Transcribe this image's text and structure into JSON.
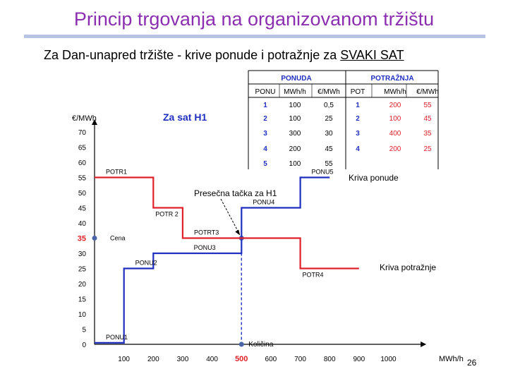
{
  "slide": {
    "title": "Princip trgovanja na organizovanom tržištu",
    "subtitle_prefix": "Za Dan-unapred tržište - krive ponude i potražnje za ",
    "subtitle_underlined": "SVAKI SAT",
    "page_number": "26"
  },
  "colors": {
    "title": "#8b2fb0",
    "supply": "#1f2fc0",
    "demand": "#e0202a",
    "highlight": "#e0202a",
    "table_header": "#1f2fc0",
    "table_values": "#1f2fc0",
    "demand_values": "#e0202a",
    "chart_title": "#1f2fc0"
  },
  "tables": {
    "supply": {
      "group_label": "PONUDA",
      "columns": [
        "PONU",
        "MWh/h",
        "€/MWh"
      ],
      "rows": [
        [
          "1",
          "100",
          "0,5"
        ],
        [
          "2",
          "100",
          "25"
        ],
        [
          "3",
          "300",
          "30"
        ],
        [
          "4",
          "200",
          "45"
        ],
        [
          "5",
          "100",
          "55"
        ]
      ]
    },
    "demand": {
      "group_label": "POTRAŽNJA",
      "columns": [
        "POT",
        "MWh/h",
        "€/MWh"
      ],
      "rows": [
        [
          "1",
          "200",
          "55"
        ],
        [
          "2",
          "100",
          "45"
        ],
        [
          "3",
          "400",
          "35"
        ],
        [
          "4",
          "200",
          "25"
        ]
      ]
    }
  },
  "chart_data": {
    "type": "line",
    "title": "Za sat H1",
    "ylabel": "€/MWh",
    "xlabel": "MWh/h",
    "xlim": [
      0,
      1100
    ],
    "ylim": [
      0,
      70
    ],
    "x_ticks": [
      100,
      200,
      300,
      400,
      500,
      600,
      700,
      800,
      900,
      1000
    ],
    "x_tick_labels": [
      "100",
      "200",
      "300",
      "400",
      "500",
      "600",
      "700",
      "800",
      "900",
      "1000"
    ],
    "y_ticks": [
      0,
      5,
      10,
      15,
      20,
      25,
      30,
      35,
      40,
      45,
      50,
      55,
      60,
      65,
      70
    ],
    "y_tick_labels": [
      "0",
      "5",
      "10",
      "15",
      "20",
      "25",
      "30",
      "35",
      "40",
      "45",
      "50",
      "55",
      "60",
      "65",
      "70"
    ],
    "highlight_x": {
      "value": 500,
      "label": "500"
    },
    "highlight_y": {
      "value": 35,
      "label": "35"
    },
    "series": [
      {
        "name": "Kriva ponude",
        "color": "#1f2fc0",
        "points": [
          [
            0,
            0.5
          ],
          [
            100,
            0.5
          ],
          [
            100,
            25
          ],
          [
            200,
            25
          ],
          [
            200,
            30
          ],
          [
            500,
            30
          ],
          [
            500,
            45
          ],
          [
            700,
            45
          ],
          [
            700,
            55
          ],
          [
            800,
            55
          ]
        ]
      },
      {
        "name": "Kriva potražnje",
        "color": "#e0202a",
        "points": [
          [
            0,
            55
          ],
          [
            200,
            55
          ],
          [
            200,
            45
          ],
          [
            300,
            45
          ],
          [
            300,
            35
          ],
          [
            700,
            35
          ],
          [
            700,
            25
          ],
          [
            900,
            25
          ]
        ]
      }
    ],
    "step_labels": [
      {
        "text": "PONU1",
        "x": 0,
        "y": 0.5,
        "anchor": "above-right"
      },
      {
        "text": "PONU2",
        "x": 100,
        "y": 25,
        "anchor": "above-right"
      },
      {
        "text": "PONU3",
        "x": 400,
        "y": 30,
        "anchor": "above"
      },
      {
        "text": "PONU4",
        "x": 500,
        "y": 45,
        "anchor": "above-right"
      },
      {
        "text": "PONU5",
        "x": 700,
        "y": 55,
        "anchor": "above-right"
      },
      {
        "text": "POTR1",
        "x": 0,
        "y": 55,
        "anchor": "above-right"
      },
      {
        "text": "POTR 2",
        "x": 200,
        "y": 45,
        "anchor": "below-right"
      },
      {
        "text": "POTRT3",
        "x": 300,
        "y": 35,
        "anchor": "above-right"
      },
      {
        "text": "POTR4",
        "x": 700,
        "y": 25,
        "anchor": "below-right"
      }
    ],
    "annotations": {
      "intersection": "Presečna tačka za H1",
      "price_marker": "Cena",
      "quantity_marker": "Količina",
      "supply_curve": "Kriva ponude",
      "demand_curve": "Kriva potražnje"
    }
  }
}
